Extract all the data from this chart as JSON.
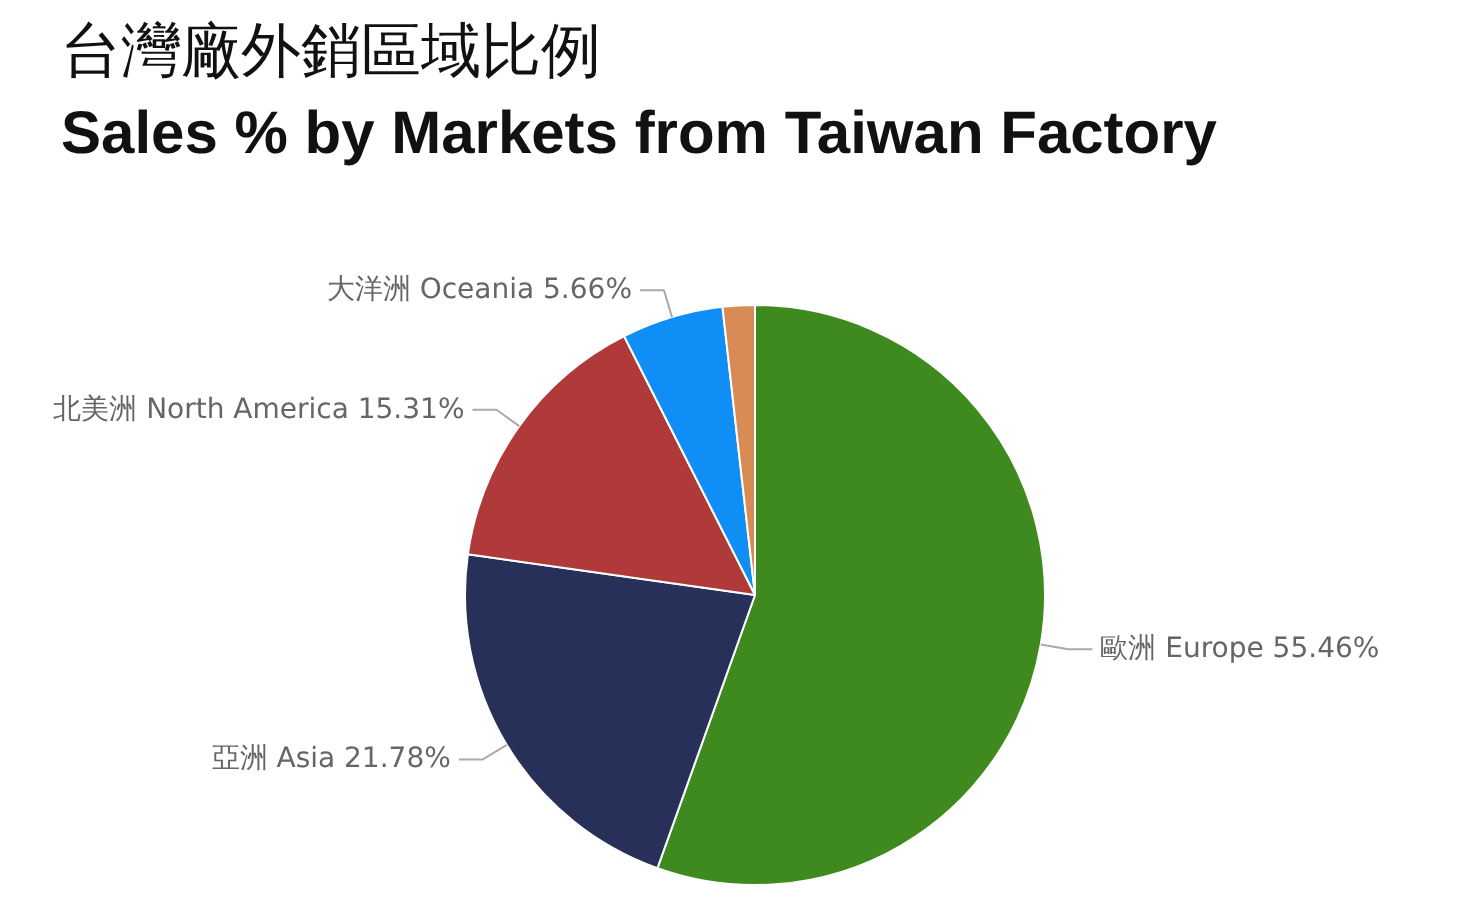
{
  "chart_data": {
    "type": "pie",
    "title": "台灣廠外銷區域比例",
    "subtitle": "Sales % by Markets from Taiwan Factory",
    "categories": [
      "歐洲 Europe",
      "亞洲 Asia",
      "北美洲 North America",
      "大洋洲 Oceania",
      null
    ],
    "values": [
      55.46,
      21.78,
      15.31,
      5.66,
      1.79
    ],
    "value_labels": [
      "55.46%",
      "21.78%",
      "15.31%",
      "5.66%",
      null
    ],
    "colors": [
      "#3f8a1f",
      "#273059",
      "#b03a3a",
      "#0f8ff5",
      "#d98b55"
    ]
  }
}
